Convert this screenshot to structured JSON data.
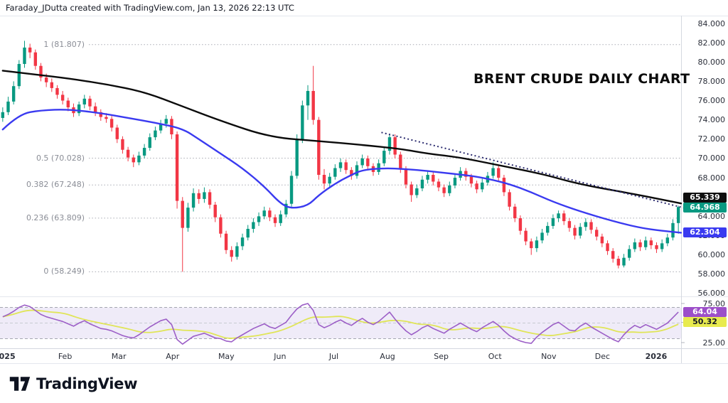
{
  "header": {
    "credit": "Faraday_JDutta created with TradingView.com, Jan 13, 2026 22:13 UTC"
  },
  "title": "BRENT CRUDE DAILY CHART",
  "logo": {
    "wordmark": "TradingView",
    "mark_icon": "tradingview-logo-icon"
  },
  "colors": {
    "candle_up": "#089981",
    "candle_down": "#F23645",
    "ma200": "#0b0b0b",
    "ma50": "#3a3af0",
    "trendline": "#2a2a6e",
    "rsi": "#9c5fc7",
    "rsi_ma": "#e0e558",
    "rsi_band": "rgba(126,87,194,0.12)",
    "fib_line": "#a8aab3",
    "axis_text": "#2a2e39",
    "badge_ma200_bg": "#0f0f0f",
    "badge_last_bg": "#089981",
    "badge_ma50_bg": "#3a3af0",
    "badge_rsi_bg": "#9c4fc9",
    "badge_rsima_bg": "#e8eb4e"
  },
  "price_labels": {
    "ma200": {
      "text": "65.339",
      "value": 65.339
    },
    "last": {
      "text": "64.968",
      "value": 64.968
    },
    "ma50": {
      "text": "62.304",
      "value": 62.304
    },
    "rsi": {
      "text": "64.04",
      "value": 64.04
    },
    "rsi_ma": {
      "text": "50.32",
      "value": 50.32
    }
  },
  "chart_data": {
    "type": "candlestick",
    "title": "BRENT CRUDE DAILY CHART",
    "timeframe": "Daily",
    "x_labels": [
      "2025",
      "Feb",
      "Mar",
      "Apr",
      "May",
      "Jun",
      "Jul",
      "Aug",
      "Sep",
      "Oct",
      "Nov",
      "Dec",
      "2026"
    ],
    "y_ticks": [
      "84.000",
      "82.000",
      "80.000",
      "78.000",
      "76.000",
      "74.000",
      "72.000",
      "70.000",
      "68.000",
      "66.000",
      "64.000",
      "62.000",
      "60.000",
      "58.000",
      "56.000"
    ],
    "ylim_main": [
      55.9,
      84.6
    ],
    "fib_levels": [
      {
        "label": "1 (81.807)",
        "value": 81.807
      },
      {
        "label": "0.5 (70.028)",
        "value": 70.028
      },
      {
        "label": "0.382 (67.248)",
        "value": 67.248
      },
      {
        "label": "0.236 (63.809)",
        "value": 63.809
      },
      {
        "label": "0 (58.249)",
        "value": 58.249
      }
    ],
    "candles": [
      [
        74.2,
        75.3,
        73.8,
        74.8
      ],
      [
        74.8,
        76.4,
        74.5,
        75.9
      ],
      [
        75.9,
        78.0,
        75.6,
        77.5
      ],
      [
        77.5,
        80.2,
        77.2,
        79.8
      ],
      [
        79.8,
        82.2,
        79.4,
        81.5
      ],
      [
        81.5,
        81.9,
        80.4,
        81.0
      ],
      [
        81.0,
        81.3,
        79.2,
        79.6
      ],
      [
        79.6,
        79.9,
        78.0,
        78.4
      ],
      [
        78.4,
        78.8,
        77.4,
        77.9
      ],
      [
        77.9,
        78.3,
        76.9,
        77.3
      ],
      [
        77.3,
        77.6,
        76.2,
        76.6
      ],
      [
        76.6,
        77.0,
        75.6,
        76.0
      ],
      [
        76.0,
        76.3,
        74.9,
        75.3
      ],
      [
        75.3,
        75.7,
        74.3,
        74.7
      ],
      [
        74.7,
        75.9,
        74.4,
        75.6
      ],
      [
        75.6,
        76.6,
        75.2,
        76.2
      ],
      [
        76.2,
        76.5,
        75.0,
        75.4
      ],
      [
        75.4,
        75.8,
        74.4,
        74.8
      ],
      [
        74.8,
        75.1,
        73.9,
        74.3
      ],
      [
        74.3,
        74.7,
        73.7,
        74.1
      ],
      [
        74.1,
        74.4,
        72.8,
        73.2
      ],
      [
        73.2,
        73.5,
        71.6,
        72.0
      ],
      [
        72.0,
        72.3,
        70.5,
        70.9
      ],
      [
        70.9,
        71.2,
        69.7,
        70.1
      ],
      [
        70.1,
        70.4,
        69.1,
        69.6
      ],
      [
        69.6,
        70.7,
        69.3,
        70.3
      ],
      [
        70.3,
        71.5,
        70.0,
        71.1
      ],
      [
        71.1,
        72.6,
        70.8,
        72.2
      ],
      [
        72.2,
        73.3,
        71.9,
        72.9
      ],
      [
        72.9,
        74.0,
        72.6,
        73.6
      ],
      [
        73.6,
        74.5,
        73.2,
        74.1
      ],
      [
        74.1,
        74.4,
        72.0,
        72.5
      ],
      [
        72.5,
        72.8,
        64.8,
        65.6
      ],
      [
        65.6,
        66.0,
        58.25,
        62.8
      ],
      [
        62.8,
        65.4,
        62.4,
        64.9
      ],
      [
        64.9,
        66.9,
        64.5,
        66.4
      ],
      [
        66.4,
        66.8,
        65.3,
        65.8
      ],
      [
        65.8,
        67.0,
        65.4,
        66.5
      ],
      [
        66.5,
        66.8,
        64.8,
        65.2
      ],
      [
        65.2,
        65.5,
        63.4,
        63.9
      ],
      [
        63.9,
        64.2,
        61.8,
        62.2
      ],
      [
        62.2,
        62.5,
        60.1,
        60.5
      ],
      [
        60.5,
        60.9,
        59.3,
        59.8
      ],
      [
        59.8,
        61.3,
        59.5,
        60.9
      ],
      [
        60.9,
        62.2,
        60.5,
        61.8
      ],
      [
        61.8,
        63.1,
        61.5,
        62.7
      ],
      [
        62.7,
        63.8,
        62.3,
        63.4
      ],
      [
        63.4,
        64.4,
        63.0,
        64.0
      ],
      [
        64.0,
        65.0,
        63.7,
        64.6
      ],
      [
        64.6,
        64.9,
        63.5,
        63.9
      ],
      [
        63.9,
        64.2,
        62.9,
        63.3
      ],
      [
        63.3,
        64.6,
        63.0,
        64.2
      ],
      [
        64.2,
        65.7,
        63.9,
        65.3
      ],
      [
        65.3,
        68.7,
        65.0,
        68.2
      ],
      [
        68.2,
        72.5,
        67.9,
        72.0
      ],
      [
        72.0,
        76.0,
        71.6,
        75.5
      ],
      [
        75.5,
        77.6,
        74.0,
        77.0
      ],
      [
        77.0,
        79.6,
        73.5,
        74.0
      ],
      [
        74.0,
        74.3,
        67.8,
        68.3
      ],
      [
        68.3,
        68.9,
        66.8,
        67.4
      ],
      [
        67.4,
        68.5,
        67.0,
        68.1
      ],
      [
        68.1,
        69.4,
        67.8,
        69.0
      ],
      [
        69.0,
        70.0,
        68.6,
        69.6
      ],
      [
        69.6,
        69.9,
        68.4,
        68.8
      ],
      [
        68.8,
        69.1,
        67.8,
        68.2
      ],
      [
        68.2,
        69.7,
        67.9,
        69.3
      ],
      [
        69.3,
        70.4,
        69.0,
        70.0
      ],
      [
        70.0,
        70.3,
        68.8,
        69.2
      ],
      [
        69.2,
        69.5,
        68.2,
        68.6
      ],
      [
        68.6,
        69.9,
        68.3,
        69.5
      ],
      [
        69.5,
        71.2,
        69.2,
        70.8
      ],
      [
        70.8,
        72.55,
        70.4,
        72.2
      ],
      [
        72.2,
        72.5,
        70.0,
        70.4
      ],
      [
        70.4,
        70.7,
        68.5,
        68.9
      ],
      [
        68.9,
        69.2,
        66.9,
        67.3
      ],
      [
        67.3,
        67.6,
        65.5,
        66.2
      ],
      [
        66.2,
        67.3,
        65.9,
        66.9
      ],
      [
        66.9,
        68.2,
        66.6,
        67.8
      ],
      [
        67.8,
        68.7,
        67.4,
        68.3
      ],
      [
        68.3,
        68.6,
        67.2,
        67.6
      ],
      [
        67.6,
        67.9,
        66.6,
        67.0
      ],
      [
        67.0,
        67.3,
        66.0,
        66.4
      ],
      [
        66.4,
        67.6,
        66.1,
        67.2
      ],
      [
        67.2,
        68.4,
        66.9,
        68.0
      ],
      [
        68.0,
        69.1,
        67.7,
        68.7
      ],
      [
        68.7,
        69.0,
        67.7,
        68.1
      ],
      [
        68.1,
        68.4,
        67.0,
        67.4
      ],
      [
        67.4,
        67.7,
        66.4,
        66.8
      ],
      [
        66.8,
        67.9,
        66.5,
        67.5
      ],
      [
        67.5,
        68.6,
        67.2,
        68.2
      ],
      [
        68.2,
        69.6,
        67.9,
        69.0
      ],
      [
        69.0,
        69.3,
        67.6,
        68.0
      ],
      [
        68.0,
        68.3,
        66.1,
        66.5
      ],
      [
        66.5,
        66.8,
        64.6,
        65.0
      ],
      [
        65.0,
        65.3,
        63.4,
        63.8
      ],
      [
        63.8,
        64.1,
        62.1,
        62.5
      ],
      [
        62.5,
        62.8,
        61.0,
        61.4
      ],
      [
        61.4,
        61.7,
        60.0,
        60.7
      ],
      [
        60.7,
        61.9,
        60.3,
        61.5
      ],
      [
        61.5,
        62.7,
        61.2,
        62.3
      ],
      [
        62.3,
        63.4,
        62.0,
        63.0
      ],
      [
        63.0,
        64.2,
        62.7,
        63.8
      ],
      [
        63.8,
        64.6,
        63.4,
        64.3
      ],
      [
        64.3,
        64.6,
        63.1,
        63.5
      ],
      [
        63.5,
        63.8,
        62.4,
        62.8
      ],
      [
        62.8,
        63.1,
        61.6,
        62.0
      ],
      [
        62.0,
        63.3,
        61.7,
        62.9
      ],
      [
        62.9,
        63.8,
        62.5,
        63.4
      ],
      [
        63.4,
        63.7,
        62.2,
        62.6
      ],
      [
        62.6,
        62.9,
        61.5,
        61.9
      ],
      [
        61.9,
        62.2,
        60.8,
        61.2
      ],
      [
        61.2,
        61.5,
        60.0,
        60.4
      ],
      [
        60.4,
        60.7,
        59.2,
        59.6
      ],
      [
        59.6,
        59.9,
        58.6,
        58.9
      ],
      [
        58.9,
        60.1,
        58.7,
        59.7
      ],
      [
        59.7,
        61.0,
        59.4,
        60.6
      ],
      [
        60.6,
        61.7,
        60.3,
        61.3
      ],
      [
        61.3,
        61.6,
        60.4,
        60.8
      ],
      [
        60.8,
        61.9,
        60.5,
        61.5
      ],
      [
        61.5,
        61.8,
        60.6,
        61.0
      ],
      [
        61.0,
        61.3,
        60.2,
        60.6
      ],
      [
        60.6,
        61.6,
        60.3,
        61.2
      ],
      [
        61.2,
        62.2,
        60.9,
        61.8
      ],
      [
        61.8,
        63.7,
        61.5,
        63.3
      ],
      [
        63.3,
        65.1,
        62.2,
        64.968
      ]
    ],
    "ma200": [
      [
        0,
        79.1
      ],
      [
        6,
        78.7
      ],
      [
        12,
        78.3
      ],
      [
        19,
        77.7
      ],
      [
        26,
        76.9
      ],
      [
        33,
        75.4
      ],
      [
        40,
        73.9
      ],
      [
        49,
        72.2
      ],
      [
        58,
        71.8
      ],
      [
        66,
        71.4
      ],
      [
        73,
        71.0
      ],
      [
        78,
        70.5
      ],
      [
        84,
        70.1
      ],
      [
        91,
        69.3
      ],
      [
        99,
        68.4
      ],
      [
        106,
        67.3
      ],
      [
        116,
        66.3
      ],
      [
        124.5,
        65.34
      ]
    ],
    "ma50": [
      [
        0,
        73.0
      ],
      [
        3,
        74.6
      ],
      [
        7,
        75.0
      ],
      [
        12,
        75.1
      ],
      [
        18,
        74.7
      ],
      [
        23,
        74.2
      ],
      [
        28,
        73.7
      ],
      [
        33,
        73.1
      ],
      [
        36,
        72.0
      ],
      [
        40,
        70.5
      ],
      [
        44,
        69.0
      ],
      [
        48,
        67.1
      ],
      [
        51,
        65.3
      ],
      [
        53,
        64.8
      ],
      [
        56,
        65.1
      ],
      [
        58,
        66.2
      ],
      [
        61,
        67.4
      ],
      [
        64,
        68.3
      ],
      [
        66,
        68.8
      ],
      [
        70,
        69.0
      ],
      [
        74,
        68.9
      ],
      [
        78,
        68.7
      ],
      [
        82,
        68.45
      ],
      [
        86,
        68.2
      ],
      [
        89,
        67.9
      ],
      [
        93,
        67.35
      ],
      [
        97,
        66.5
      ],
      [
        101,
        65.5
      ],
      [
        106,
        64.5
      ],
      [
        112,
        63.5
      ],
      [
        117,
        62.8
      ],
      [
        121,
        62.5
      ],
      [
        124.5,
        62.3
      ]
    ],
    "trendline": {
      "from": [
        69.5,
        72.7
      ],
      "to": [
        125.0,
        64.88
      ],
      "style": "dotted"
    },
    "rsi": {
      "values": [
        58,
        61,
        65,
        70,
        73,
        71,
        66,
        61,
        58,
        56,
        54,
        52,
        49,
        46,
        50,
        53,
        49,
        46,
        43,
        42,
        40,
        37,
        34,
        32,
        31,
        35,
        40,
        45,
        49,
        53,
        55,
        48,
        29,
        23,
        28,
        33,
        35,
        37,
        34,
        31,
        30,
        27,
        26,
        31,
        35,
        39,
        43,
        46,
        49,
        45,
        43,
        47,
        51,
        60,
        68,
        73,
        75,
        66,
        48,
        44,
        47,
        51,
        54,
        50,
        47,
        52,
        56,
        51,
        48,
        52,
        58,
        64,
        55,
        47,
        40,
        35,
        39,
        44,
        47,
        43,
        40,
        37,
        42,
        46,
        50,
        46,
        42,
        39,
        44,
        48,
        52,
        47,
        40,
        34,
        30,
        27,
        25,
        24,
        32,
        38,
        43,
        48,
        51,
        46,
        41,
        40,
        46,
        50,
        45,
        41,
        37,
        33,
        29,
        26,
        35,
        42,
        47,
        44,
        48,
        45,
        42,
        46,
        50,
        57,
        64
      ],
      "ma_window": 10,
      "overbought": 70,
      "mid": 50,
      "oversold": 30,
      "last_value": 64.04,
      "ma_last_value": 50.32,
      "ticks": [
        "75.00",
        "25.00"
      ]
    }
  }
}
